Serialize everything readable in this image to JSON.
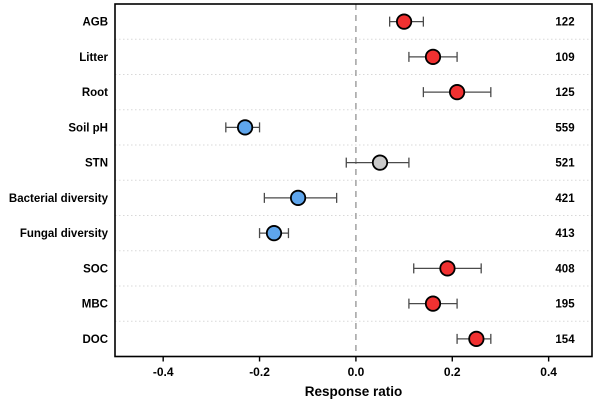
{
  "chart_data": {
    "type": "scatter",
    "subtype": "forest-plot-dot-interval",
    "title": "",
    "xlabel": "Response ratio",
    "ylabel": "",
    "xlim": [
      -0.5,
      0.49
    ],
    "x_ticks": [
      -0.4,
      -0.2,
      0.0,
      0.2,
      0.4
    ],
    "x_tick_labels": [
      "-0.4",
      "-0.2",
      "0.0",
      "0.2",
      "0.4"
    ],
    "zero_line_x": 0.0,
    "grid": "dotted-horizontal-row-separators",
    "legend_position": "none",
    "rows": [
      {
        "label": "AGB",
        "value": 0.1,
        "ci_low": 0.07,
        "ci_high": 0.14,
        "group": "positive",
        "n": "122"
      },
      {
        "label": "Litter",
        "value": 0.16,
        "ci_low": 0.11,
        "ci_high": 0.21,
        "group": "positive",
        "n": "109"
      },
      {
        "label": "Root",
        "value": 0.21,
        "ci_low": 0.14,
        "ci_high": 0.28,
        "group": "positive",
        "n": "125"
      },
      {
        "label": "Soil pH",
        "value": -0.23,
        "ci_low": -0.27,
        "ci_high": -0.2,
        "group": "negative",
        "n": "559"
      },
      {
        "label": "STN",
        "value": 0.05,
        "ci_low": -0.02,
        "ci_high": 0.11,
        "group": "neutral",
        "n": "521"
      },
      {
        "label": "Bacterial diversity",
        "value": -0.12,
        "ci_low": -0.19,
        "ci_high": -0.04,
        "group": "negative",
        "n": "421"
      },
      {
        "label": "Fungal diversity",
        "value": -0.17,
        "ci_low": -0.2,
        "ci_high": -0.14,
        "group": "negative",
        "n": "413"
      },
      {
        "label": "SOC",
        "value": 0.19,
        "ci_low": 0.12,
        "ci_high": 0.26,
        "group": "positive",
        "n": "408"
      },
      {
        "label": "MBC",
        "value": 0.16,
        "ci_low": 0.11,
        "ci_high": 0.21,
        "group": "positive",
        "n": "195"
      },
      {
        "label": "DOC",
        "value": 0.25,
        "ci_low": 0.21,
        "ci_high": 0.28,
        "group": "positive",
        "n": "154"
      }
    ],
    "colors": {
      "positive": "#f13131",
      "negative": "#5ea5ec",
      "neutral": "#c9c9c9",
      "marker_stroke": "#000000",
      "whisker": "#4a4a4a",
      "zero_line": "#9a9a9a",
      "grid_line": "#d8d8d8",
      "frame": "#000000"
    }
  }
}
